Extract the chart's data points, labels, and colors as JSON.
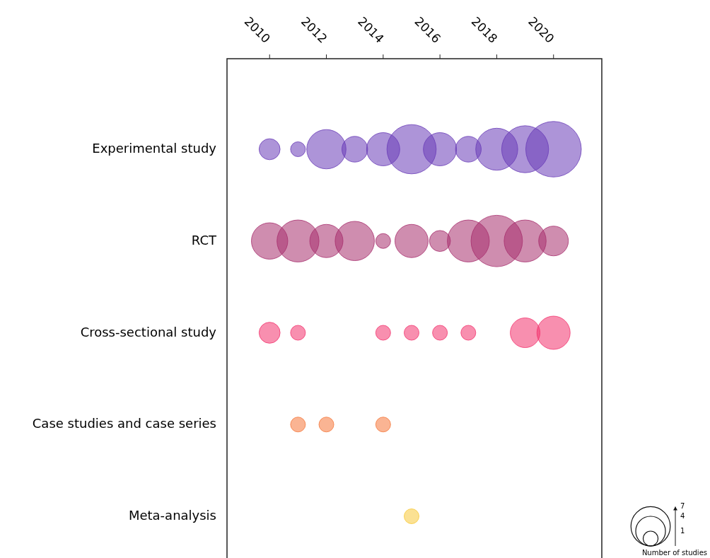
{
  "chart_data": {
    "type": "bubble",
    "orientation": "horizontal",
    "xlim": [
      2008.5,
      2021.7
    ],
    "xticks": [
      2010,
      2012,
      2014,
      2016,
      2018,
      2020
    ],
    "categories": [
      "Experimental study",
      "RCT",
      "Cross-sectional study",
      "Case studies and case series",
      "Meta-analysis"
    ],
    "series": [
      {
        "values": [
          2010,
          2010,
          2010,
          null,
          null
        ],
        "sizes": [
          2,
          6,
          2,
          null,
          null
        ],
        "colors": [
          "#6a3db8",
          "#a8306e",
          "#f2336e",
          null,
          null
        ]
      },
      {
        "values": [
          2011,
          2011,
          2011,
          2011,
          null
        ],
        "sizes": [
          1,
          8,
          1,
          1,
          null
        ],
        "colors": [
          "#6a3db8",
          "#a8306e",
          "#f2336e",
          "#f5773a",
          null
        ]
      },
      {
        "values": [
          2012,
          2012,
          null,
          2012,
          null
        ],
        "sizes": [
          7,
          5,
          null,
          1,
          null
        ],
        "colors": [
          "#6a3db8",
          "#a8306e",
          null,
          "#f5773a",
          null
        ]
      },
      {
        "values": [
          2013,
          2013,
          null,
          null,
          null
        ],
        "sizes": [
          3,
          7,
          null,
          null,
          null
        ],
        "colors": [
          "#6a3db8",
          "#a8306e",
          null,
          null,
          null
        ]
      },
      {
        "values": [
          2014,
          2014,
          2014,
          2014,
          null
        ],
        "sizes": [
          5,
          1,
          1,
          1,
          null
        ],
        "colors": [
          "#6a3db8",
          "#a8306e",
          "#f2336e",
          "#f5773a",
          null
        ]
      },
      {
        "values": [
          2015,
          2015,
          2015,
          null,
          2015
        ],
        "sizes": [
          11,
          5,
          1,
          null,
          1
        ],
        "colors": [
          "#6a3db8",
          "#a8306e",
          "#f2336e",
          null,
          "#f7c93a"
        ]
      },
      {
        "values": [
          2016,
          2016,
          2016,
          null,
          null
        ],
        "sizes": [
          5,
          2,
          1,
          null,
          null
        ],
        "colors": [
          "#6a3db8",
          "#a8306e",
          "#f2336e",
          null,
          null
        ]
      },
      {
        "values": [
          2017,
          2017,
          2017,
          null,
          null
        ],
        "sizes": [
          3,
          8,
          1,
          null,
          null
        ],
        "colors": [
          "#6a3db8",
          "#a8306e",
          "#f2336e",
          null,
          null
        ]
      },
      {
        "values": [
          2018,
          2018,
          null,
          null,
          null
        ],
        "sizes": [
          8,
          12,
          null,
          null,
          null
        ],
        "colors": [
          "#6a3db8",
          "#a8306e",
          null,
          null,
          null
        ]
      },
      {
        "values": [
          2019,
          2019,
          2019,
          null,
          null
        ],
        "sizes": [
          10,
          8,
          4,
          null,
          null
        ],
        "colors": [
          "#6a3db8",
          "#a8306e",
          "#f2336e",
          null,
          null
        ]
      },
      {
        "values": [
          2020,
          2020,
          2020,
          null,
          null
        ],
        "sizes": [
          14,
          4,
          5,
          null,
          null
        ],
        "colors": [
          "#6a3db8",
          "#a8306e",
          "#f2336e",
          null,
          null
        ]
      }
    ],
    "size_legend": [
      1,
      4,
      7
    ],
    "annotations": [
      "Number of studies"
    ]
  }
}
